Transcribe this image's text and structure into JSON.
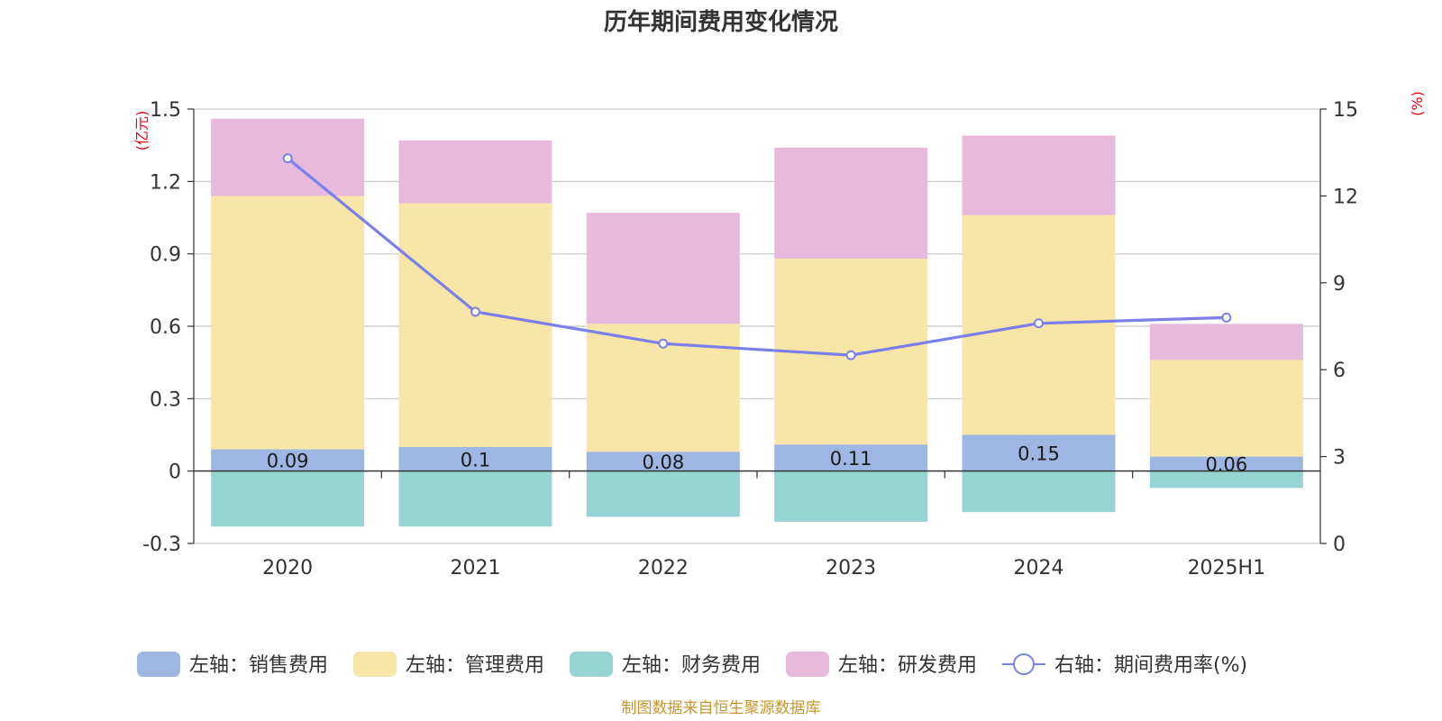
{
  "colors": {
    "sales": "#9db7e2",
    "admin": "#f7e6a7",
    "finance": "#96d4d4",
    "rnd": "#e7b9da",
    "rate": "#7b7fec",
    "unit_label": "#e60012",
    "source": "#c8962e",
    "grid": "#c8c8c8"
  },
  "chart_data": {
    "type": "bar",
    "title": "历年期间费用变化情况",
    "left_unit": "(亿元)",
    "right_unit": "(%)",
    "categories": [
      "2020",
      "2021",
      "2022",
      "2023",
      "2024",
      "2025H1"
    ],
    "left_axis": {
      "ylim": [
        -0.3,
        1.5
      ],
      "ticks": [
        "1.5",
        "1.2",
        "0.9",
        "0.6",
        "0.3",
        "0",
        "-0.3"
      ],
      "tick_values": [
        1.5,
        1.2,
        0.9,
        0.6,
        0.3,
        0,
        -0.3
      ]
    },
    "right_axis": {
      "ylim": [
        0,
        15
      ],
      "ticks": [
        "15",
        "12",
        "9",
        "6",
        "3",
        "0"
      ],
      "tick_values": [
        15,
        12,
        9,
        6,
        3,
        0
      ]
    },
    "stacked": true,
    "series": [
      {
        "name": "左轴：销售费用",
        "key": "sales",
        "values": [
          0.09,
          0.1,
          0.08,
          0.11,
          0.15,
          0.06
        ],
        "labels": [
          "0.09",
          "0.1",
          "0.08",
          "0.11",
          "0.15",
          "0.06"
        ]
      },
      {
        "name": "左轴：管理费用",
        "key": "admin",
        "values": [
          1.05,
          1.01,
          0.53,
          0.77,
          0.91,
          0.4
        ]
      },
      {
        "name": "左轴：财务费用",
        "key": "finance",
        "values": [
          -0.23,
          -0.23,
          -0.19,
          -0.21,
          -0.17,
          -0.07
        ]
      },
      {
        "name": "左轴：研发费用",
        "key": "rnd",
        "values": [
          0.32,
          0.26,
          0.46,
          0.46,
          0.33,
          0.15
        ]
      },
      {
        "name": "右轴：期间费用率(%)",
        "key": "rate",
        "type": "line",
        "axis": "right",
        "values": [
          13.3,
          8.0,
          6.9,
          6.5,
          7.6,
          7.8
        ]
      }
    ],
    "grid": true,
    "legend_position": "bottom"
  },
  "source_text": "制图数据来自恒生聚源数据库"
}
